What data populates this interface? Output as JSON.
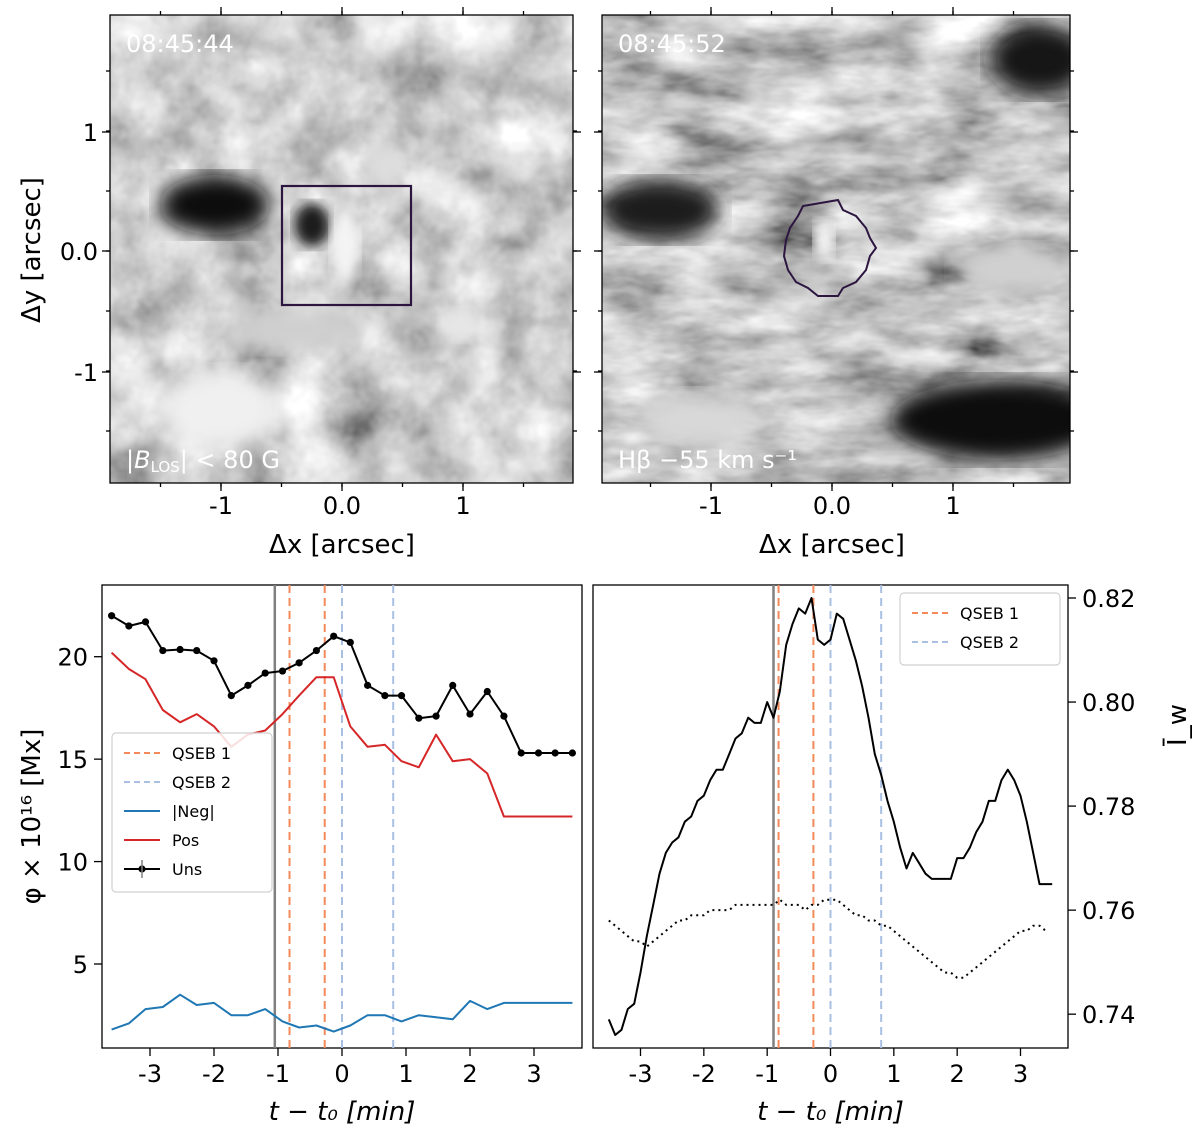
{
  "panels": {
    "top_left": {
      "timestamp": "08:45:44",
      "label": "|B_LOS| < 80 G",
      "xlabel": "Δx [arcsec]",
      "ylabel": "Δy [arcsec]",
      "xticks": [
        "-1",
        "0.0",
        "1"
      ],
      "yticks": [
        "1",
        "0.0",
        "-1"
      ]
    },
    "top_right": {
      "timestamp": "08:45:52",
      "label": "Hβ −55 km s⁻¹",
      "xlabel": "Δx [arcsec]",
      "xticks": [
        "-1",
        "0.0",
        "1"
      ]
    }
  },
  "chart_data": [
    {
      "type": "line",
      "ylabel": "φ × 10¹⁶ [Mx]",
      "xlabel": "t − t₀ [min]",
      "xlim": [
        -3.75,
        3.75
      ],
      "ylim": [
        0.9,
        23.5
      ],
      "xticks": [
        -3,
        -2,
        -1,
        0,
        1,
        2,
        3
      ],
      "xtick_labels": [
        "-3",
        "-2",
        "-1",
        "0",
        "1",
        "2",
        "3"
      ],
      "yticks": [
        5,
        10,
        15,
        20
      ],
      "ytick_labels": [
        "5",
        "10",
        "15",
        "20"
      ],
      "x": [
        -3.6,
        -3.33,
        -3.07,
        -2.8,
        -2.53,
        -2.27,
        -2.0,
        -1.73,
        -1.47,
        -1.2,
        -0.93,
        -0.67,
        -0.4,
        -0.13,
        0.13,
        0.4,
        0.67,
        0.93,
        1.2,
        1.47,
        1.73,
        2.0,
        2.27,
        2.53,
        2.8,
        3.07,
        3.33,
        3.6
      ],
      "series": [
        {
          "name": "Uns",
          "color": "#000000",
          "marker": true,
          "values": [
            22.0,
            21.5,
            21.7,
            20.3,
            20.35,
            20.3,
            19.8,
            18.1,
            18.6,
            19.2,
            19.3,
            19.7,
            20.3,
            21.0,
            20.7,
            18.6,
            18.1,
            18.1,
            17.0,
            17.1,
            18.6,
            17.2,
            18.3,
            17.1,
            15.3,
            15.3,
            15.3,
            15.3
          ]
        },
        {
          "name": "Pos",
          "color": "#d62728",
          "marker": false,
          "values": [
            20.2,
            19.4,
            18.9,
            17.4,
            16.8,
            17.2,
            16.6,
            15.6,
            16.2,
            16.4,
            17.2,
            18.1,
            19.0,
            19.0,
            16.6,
            15.6,
            15.7,
            14.9,
            14.6,
            16.2,
            14.9,
            15.0,
            14.3,
            12.2,
            12.2,
            12.2,
            12.2,
            12.2
          ]
        },
        {
          "name": "|Neg|",
          "color": "#1f77b4",
          "marker": false,
          "values": [
            1.8,
            2.1,
            2.8,
            2.9,
            3.5,
            3.0,
            3.1,
            2.5,
            2.5,
            2.8,
            2.2,
            1.9,
            2.0,
            1.7,
            2.0,
            2.5,
            2.5,
            2.2,
            2.5,
            2.4,
            2.3,
            3.2,
            2.8,
            3.1,
            3.1,
            3.1,
            3.1,
            3.1
          ]
        }
      ],
      "vlines": [
        {
          "x": -1.05,
          "color": "#808080",
          "style": "solid"
        },
        {
          "x": -0.82,
          "color": "#f4895a",
          "style": "dashed"
        },
        {
          "x": -0.27,
          "color": "#f4895a",
          "style": "dashed"
        },
        {
          "x": 0.0,
          "color": "#a9c0e3",
          "style": "dashed"
        },
        {
          "x": 0.8,
          "color": "#a9c0e3",
          "style": "dashed"
        }
      ],
      "legend": {
        "position": "center-left",
        "entries": [
          {
            "label": "QSEB 1",
            "color": "#f4895a",
            "style": "dashed"
          },
          {
            "label": "QSEB 2",
            "color": "#a9c0e3",
            "style": "dashed"
          },
          {
            "label": "|Neg|",
            "color": "#1f77b4",
            "style": "solid"
          },
          {
            "label": "Pos",
            "color": "#d62728",
            "style": "solid"
          },
          {
            "label": "Uns",
            "color": "#000000",
            "style": "errorbar"
          }
        ]
      }
    },
    {
      "type": "line",
      "ylabel": "Ī_w",
      "xlabel": "t − t₀ [min]",
      "xlim": [
        -3.75,
        3.75
      ],
      "ylim": [
        0.7335,
        0.8225
      ],
      "xticks": [
        -3,
        -2,
        -1,
        0,
        1,
        2,
        3
      ],
      "xtick_labels": [
        "-3",
        "-2",
        "-1",
        "0",
        "1",
        "2",
        "3"
      ],
      "yticks": [
        0.74,
        0.76,
        0.78,
        0.8,
        0.82
      ],
      "ytick_labels": [
        "0.74",
        "0.76",
        "0.78",
        "0.80",
        "0.82"
      ],
      "series": [
        {
          "name": "solid",
          "color": "#000000",
          "style": "solid",
          "x": [
            -3.5,
            -3.4,
            -3.3,
            -3.2,
            -3.1,
            -3.0,
            -2.9,
            -2.8,
            -2.7,
            -2.6,
            -2.5,
            -2.4,
            -2.3,
            -2.2,
            -2.1,
            -2.0,
            -1.9,
            -1.8,
            -1.7,
            -1.6,
            -1.5,
            -1.4,
            -1.3,
            -1.2,
            -1.1,
            -1.0,
            -0.9,
            -0.8,
            -0.7,
            -0.6,
            -0.5,
            -0.4,
            -0.3,
            -0.2,
            -0.1,
            0.0,
            0.1,
            0.2,
            0.3,
            0.4,
            0.5,
            0.6,
            0.7,
            0.8,
            0.9,
            1.0,
            1.1,
            1.2,
            1.3,
            1.4,
            1.5,
            1.6,
            1.7,
            1.8,
            1.9,
            2.0,
            2.1,
            2.2,
            2.3,
            2.4,
            2.5,
            2.6,
            2.7,
            2.8,
            2.9,
            3.0,
            3.1,
            3.2,
            3.3,
            3.4,
            3.5
          ],
          "values": [
            0.739,
            0.736,
            0.737,
            0.741,
            0.742,
            0.748,
            0.755,
            0.761,
            0.767,
            0.771,
            0.773,
            0.774,
            0.777,
            0.778,
            0.781,
            0.782,
            0.785,
            0.787,
            0.787,
            0.79,
            0.793,
            0.794,
            0.797,
            0.796,
            0.796,
            0.8,
            0.797,
            0.802,
            0.811,
            0.815,
            0.818,
            0.817,
            0.82,
            0.812,
            0.811,
            0.812,
            0.817,
            0.816,
            0.812,
            0.808,
            0.803,
            0.797,
            0.79,
            0.786,
            0.781,
            0.777,
            0.772,
            0.768,
            0.771,
            0.769,
            0.767,
            0.766,
            0.766,
            0.766,
            0.766,
            0.77,
            0.77,
            0.772,
            0.775,
            0.777,
            0.781,
            0.781,
            0.785,
            0.787,
            0.785,
            0.782,
            0.777,
            0.771,
            0.765,
            0.765,
            0.765
          ]
        },
        {
          "name": "dotted",
          "color": "#000000",
          "style": "dotted",
          "x": [
            -3.5,
            -3.4,
            -3.3,
            -3.2,
            -3.1,
            -3.0,
            -2.9,
            -2.8,
            -2.7,
            -2.6,
            -2.5,
            -2.4,
            -2.3,
            -2.2,
            -2.1,
            -2.0,
            -1.9,
            -1.8,
            -1.7,
            -1.6,
            -1.5,
            -1.4,
            -1.3,
            -1.2,
            -1.1,
            -1.0,
            -0.9,
            -0.8,
            -0.7,
            -0.6,
            -0.5,
            -0.4,
            -0.3,
            -0.2,
            -0.1,
            0.0,
            0.1,
            0.2,
            0.3,
            0.4,
            0.5,
            0.6,
            0.7,
            0.8,
            0.9,
            1.0,
            1.1,
            1.2,
            1.3,
            1.4,
            1.5,
            1.6,
            1.7,
            1.8,
            1.9,
            2.0,
            2.1,
            2.2,
            2.3,
            2.4,
            2.5,
            2.6,
            2.7,
            2.8,
            2.9,
            3.0,
            3.1,
            3.2,
            3.3,
            3.4
          ],
          "values": [
            0.758,
            0.757,
            0.756,
            0.755,
            0.754,
            0.754,
            0.753,
            0.754,
            0.755,
            0.756,
            0.757,
            0.758,
            0.758,
            0.759,
            0.759,
            0.759,
            0.76,
            0.76,
            0.76,
            0.76,
            0.761,
            0.761,
            0.761,
            0.761,
            0.761,
            0.761,
            0.761,
            0.762,
            0.761,
            0.761,
            0.761,
            0.76,
            0.761,
            0.761,
            0.762,
            0.762,
            0.762,
            0.761,
            0.76,
            0.759,
            0.759,
            0.758,
            0.758,
            0.757,
            0.757,
            0.756,
            0.755,
            0.754,
            0.753,
            0.752,
            0.751,
            0.75,
            0.749,
            0.748,
            0.748,
            0.747,
            0.747,
            0.748,
            0.749,
            0.75,
            0.751,
            0.752,
            0.753,
            0.754,
            0.755,
            0.756,
            0.756,
            0.757,
            0.757,
            0.756
          ]
        }
      ],
      "vlines": [
        {
          "x": -0.9,
          "color": "#808080",
          "style": "solid"
        },
        {
          "x": -0.82,
          "color": "#f4895a",
          "style": "dashed"
        },
        {
          "x": -0.27,
          "color": "#f4895a",
          "style": "dashed"
        },
        {
          "x": 0.0,
          "color": "#a9c0e3",
          "style": "dashed"
        },
        {
          "x": 0.8,
          "color": "#a9c0e3",
          "style": "dashed"
        }
      ],
      "legend": {
        "position": "top-right",
        "entries": [
          {
            "label": "QSEB 1",
            "color": "#f4895a",
            "style": "dashed"
          },
          {
            "label": "QSEB 2",
            "color": "#a9c0e3",
            "style": "dashed"
          }
        ]
      }
    }
  ]
}
